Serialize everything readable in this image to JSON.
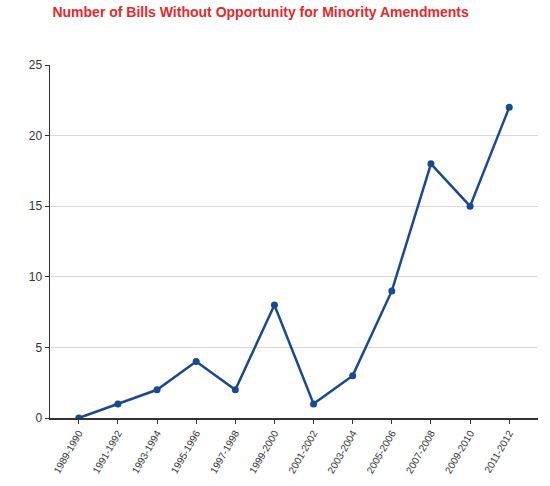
{
  "chart_data": {
    "type": "line",
    "title": "Number of Bills Without Opportunity for Minority Amendments",
    "categories": [
      "1989-1990",
      "1991-1992",
      "1993-1994",
      "1995-1996",
      "1997-1998",
      "1999-2000",
      "2001-2002",
      "2003-2004",
      "2005-2006",
      "2007-2008",
      "2009-2010",
      "2011-2012"
    ],
    "values": [
      0,
      1,
      2,
      4,
      2,
      8,
      1,
      3,
      9,
      18,
      15,
      22
    ],
    "color": "#1b4a8c",
    "marker": "circle",
    "ylim": [
      0,
      25
    ],
    "yticks": [
      0,
      5,
      10,
      15,
      20,
      25
    ],
    "grid": true
  }
}
